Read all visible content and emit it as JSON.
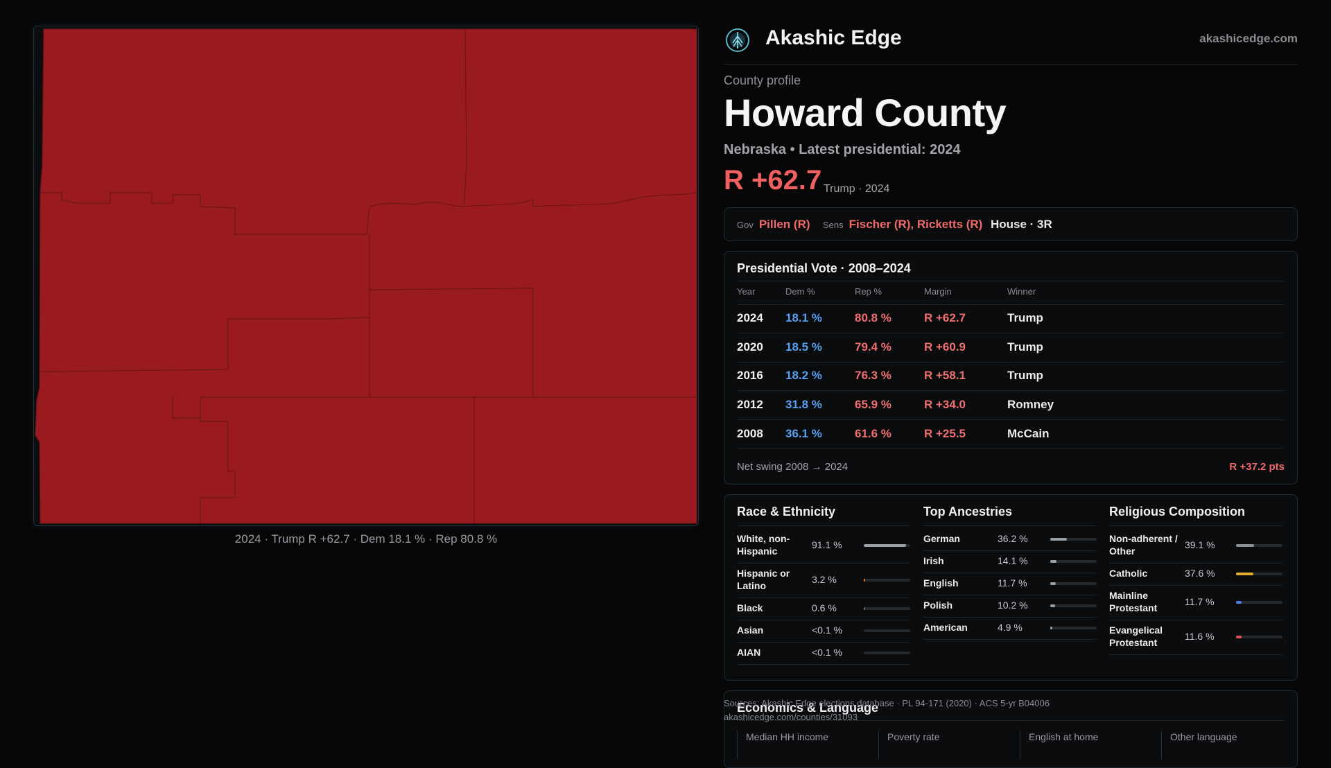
{
  "map": {
    "fill_color": "#9a1b1f",
    "border_color": "#6e1417",
    "caption": "2024 · Trump R +62.7 · Dem 18.1 % · Rep 80.8 %"
  },
  "brand": {
    "name": "Akashic Edge",
    "url": "akashicedge.com",
    "logo_icon": "compass-tree-icon"
  },
  "profile": {
    "label": "County profile",
    "name": "Howard County",
    "meta": "Nebraska • Latest presidential: 2024",
    "margin": "R +62.7",
    "margin_sub": "Trump · 2024"
  },
  "officials": {
    "gov_label": "Gov",
    "gov": "Pillen (R)",
    "sens_label": "Sens",
    "sens": "Fischer (R), Ricketts (R)",
    "house": "House · 3R"
  },
  "presidential": {
    "title": "Presidential Vote · 2008–2024",
    "headers": [
      "Year",
      "Dem %",
      "Rep %",
      "Margin",
      "Winner"
    ],
    "rows": [
      {
        "year": "2024",
        "dem": "18.1 %",
        "rep": "80.8 %",
        "margin": "R +62.7",
        "winner": "Trump"
      },
      {
        "year": "2020",
        "dem": "18.5 %",
        "rep": "79.4 %",
        "margin": "R +60.9",
        "winner": "Trump"
      },
      {
        "year": "2016",
        "dem": "18.2 %",
        "rep": "76.3 %",
        "margin": "R +58.1",
        "winner": "Trump"
      },
      {
        "year": "2012",
        "dem": "31.8 %",
        "rep": "65.9 %",
        "margin": "R +34.0",
        "winner": "Romney"
      },
      {
        "year": "2008",
        "dem": "36.1 %",
        "rep": "61.6 %",
        "margin": "R +25.5",
        "winner": "McCain"
      }
    ],
    "swing_label": "Net swing 2008 → 2024",
    "swing_value": "R +37.2 pts"
  },
  "race": {
    "title": "Race & Ethnicity",
    "items": [
      {
        "label": "White, non-Hispanic",
        "pct": "91.1 %",
        "value": 91.1,
        "color": "#9aa0a8"
      },
      {
        "label": "Hispanic or Latino",
        "pct": "3.2 %",
        "value": 3.2,
        "color": "#e0752a"
      },
      {
        "label": "Black",
        "pct": "0.6 %",
        "value": 0.6,
        "color": "#6a6a70"
      },
      {
        "label": "Asian",
        "pct": "<0.1 %",
        "value": 0.0,
        "color": "#6a6a70"
      },
      {
        "label": "AIAN",
        "pct": "<0.1 %",
        "value": 0.0,
        "color": "#6a6a70"
      }
    ]
  },
  "ancestry": {
    "title": "Top Ancestries",
    "items": [
      {
        "label": "German",
        "pct": "36.2 %",
        "value": 36.2,
        "color": "#9aa0a8"
      },
      {
        "label": "Irish",
        "pct": "14.1 %",
        "value": 14.1,
        "color": "#9aa0a8"
      },
      {
        "label": "English",
        "pct": "11.7 %",
        "value": 11.7,
        "color": "#9aa0a8"
      },
      {
        "label": "Polish",
        "pct": "10.2 %",
        "value": 10.2,
        "color": "#9aa0a8"
      },
      {
        "label": "American",
        "pct": "4.9 %",
        "value": 4.9,
        "color": "#9aa0a8"
      }
    ]
  },
  "religion": {
    "title": "Religious Composition",
    "items": [
      {
        "label": "Non-adherent / Other",
        "pct": "39.1 %",
        "value": 39.1,
        "color": "#8a9098"
      },
      {
        "label": "Catholic",
        "pct": "37.6 %",
        "value": 37.6,
        "color": "#e0b030"
      },
      {
        "label": "Mainline Protestant",
        "pct": "11.7 %",
        "value": 11.7,
        "color": "#5080e0"
      },
      {
        "label": "Evangelical Protestant",
        "pct": "11.6 %",
        "value": 11.6,
        "color": "#e05050"
      }
    ]
  },
  "economics": {
    "title": "Economics & Language",
    "headers": [
      "Median HH income",
      "Poverty rate",
      "English at home",
      "Other language"
    ]
  },
  "sources": {
    "line1": "Sources: Akashic Edge elections database · PL 94-171 (2020) · ACS 5-yr B04006",
    "line2": "akashicedge.com/counties/31093"
  }
}
